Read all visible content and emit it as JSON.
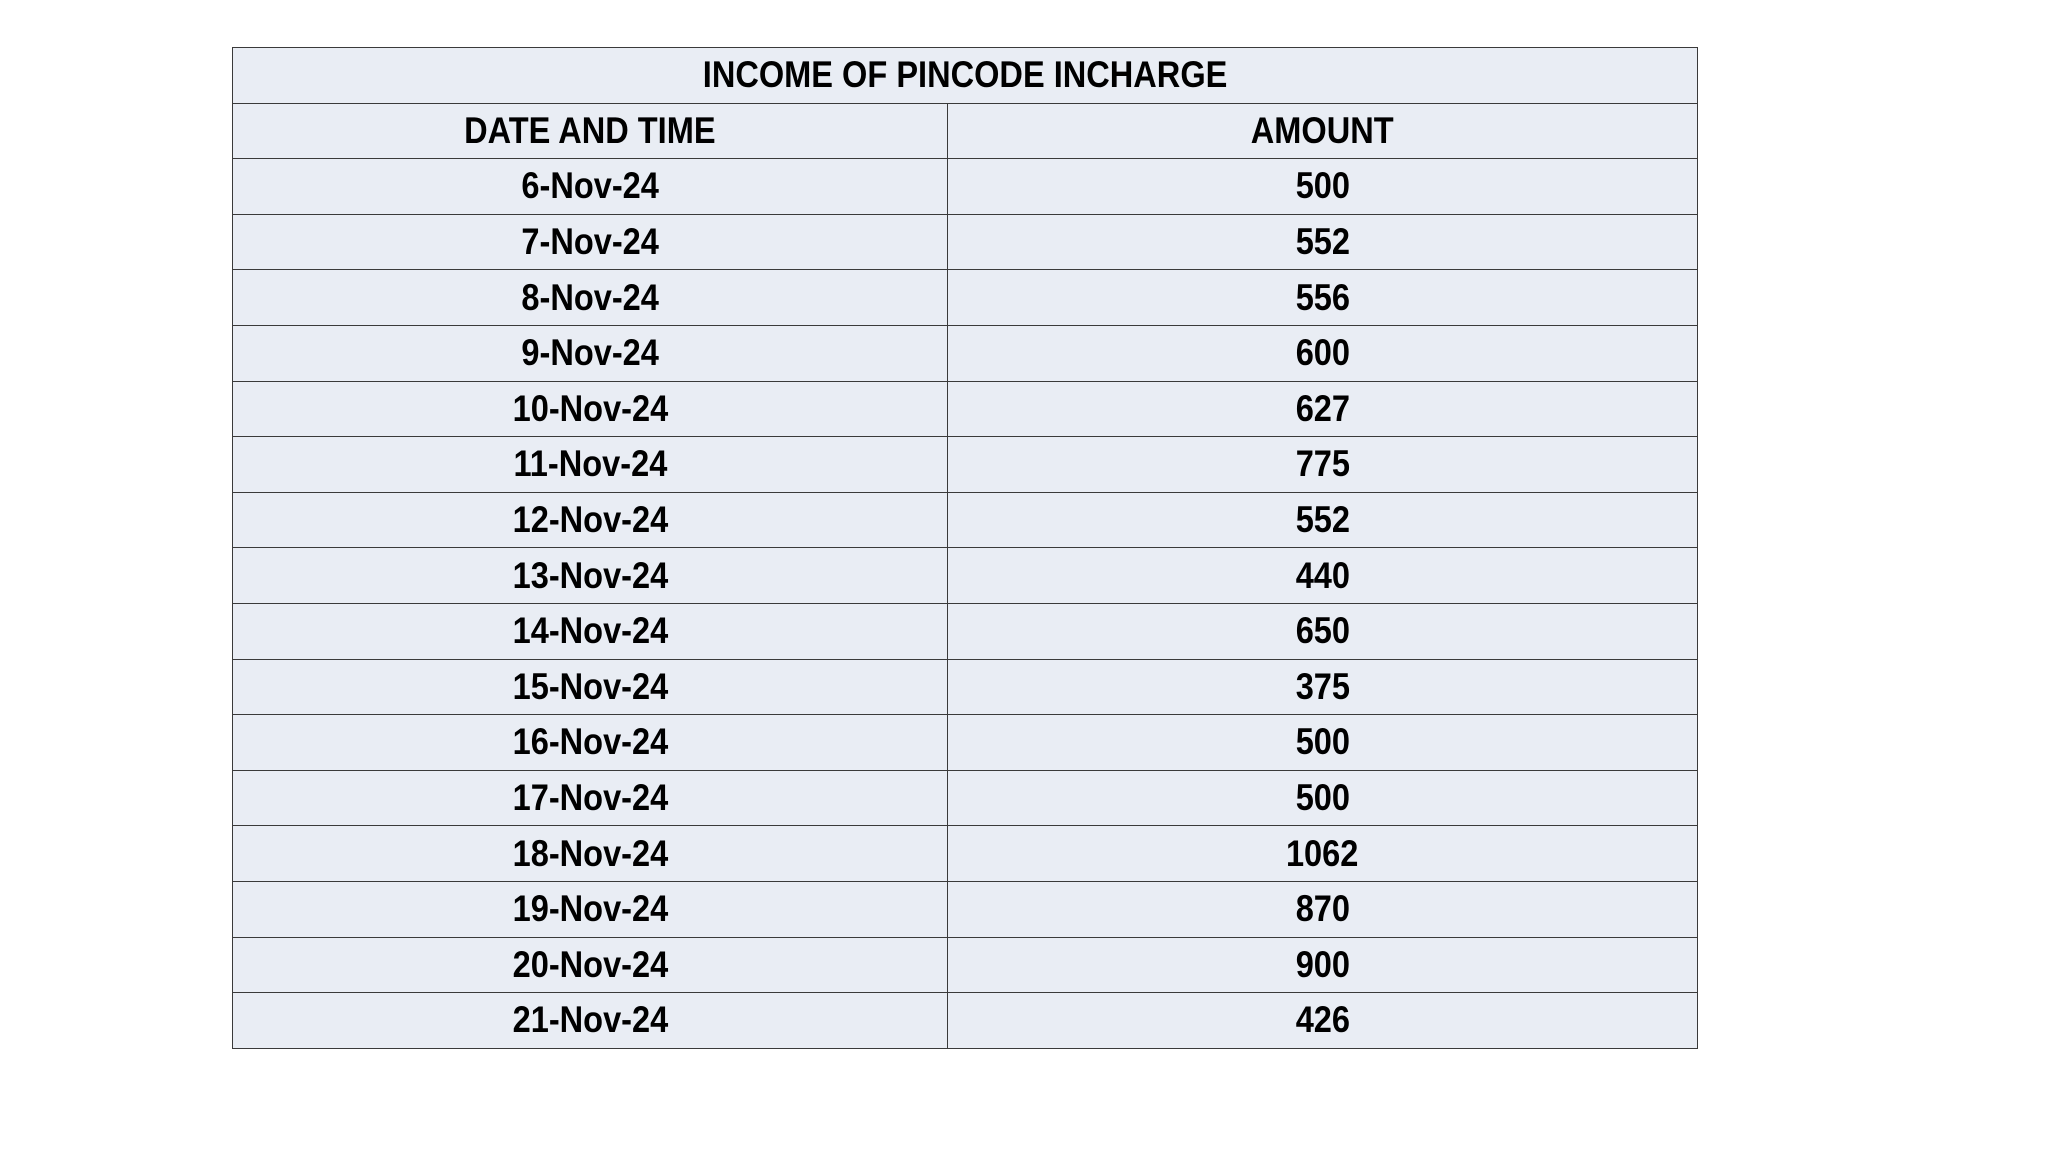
{
  "table": {
    "title": "INCOME OF PINCODE INCHARGE",
    "headers": [
      "DATE AND TIME",
      "AMOUNT"
    ],
    "rows": [
      [
        "6-Nov-24",
        "500"
      ],
      [
        "7-Nov-24",
        "552"
      ],
      [
        "8-Nov-24",
        "556"
      ],
      [
        "9-Nov-24",
        "600"
      ],
      [
        "10-Nov-24",
        "627"
      ],
      [
        "11-Nov-24",
        "775"
      ],
      [
        "12-Nov-24",
        "552"
      ],
      [
        "13-Nov-24",
        "440"
      ],
      [
        "14-Nov-24",
        "650"
      ],
      [
        "15-Nov-24",
        "375"
      ],
      [
        "16-Nov-24",
        "500"
      ],
      [
        "17-Nov-24",
        "500"
      ],
      [
        "18-Nov-24",
        "1062"
      ],
      [
        "19-Nov-24",
        "870"
      ],
      [
        "20-Nov-24",
        "900"
      ],
      [
        "21-Nov-24",
        "426"
      ]
    ],
    "colors": {
      "cell_background": "#e9edf4",
      "border": "#3a3a3a"
    }
  }
}
